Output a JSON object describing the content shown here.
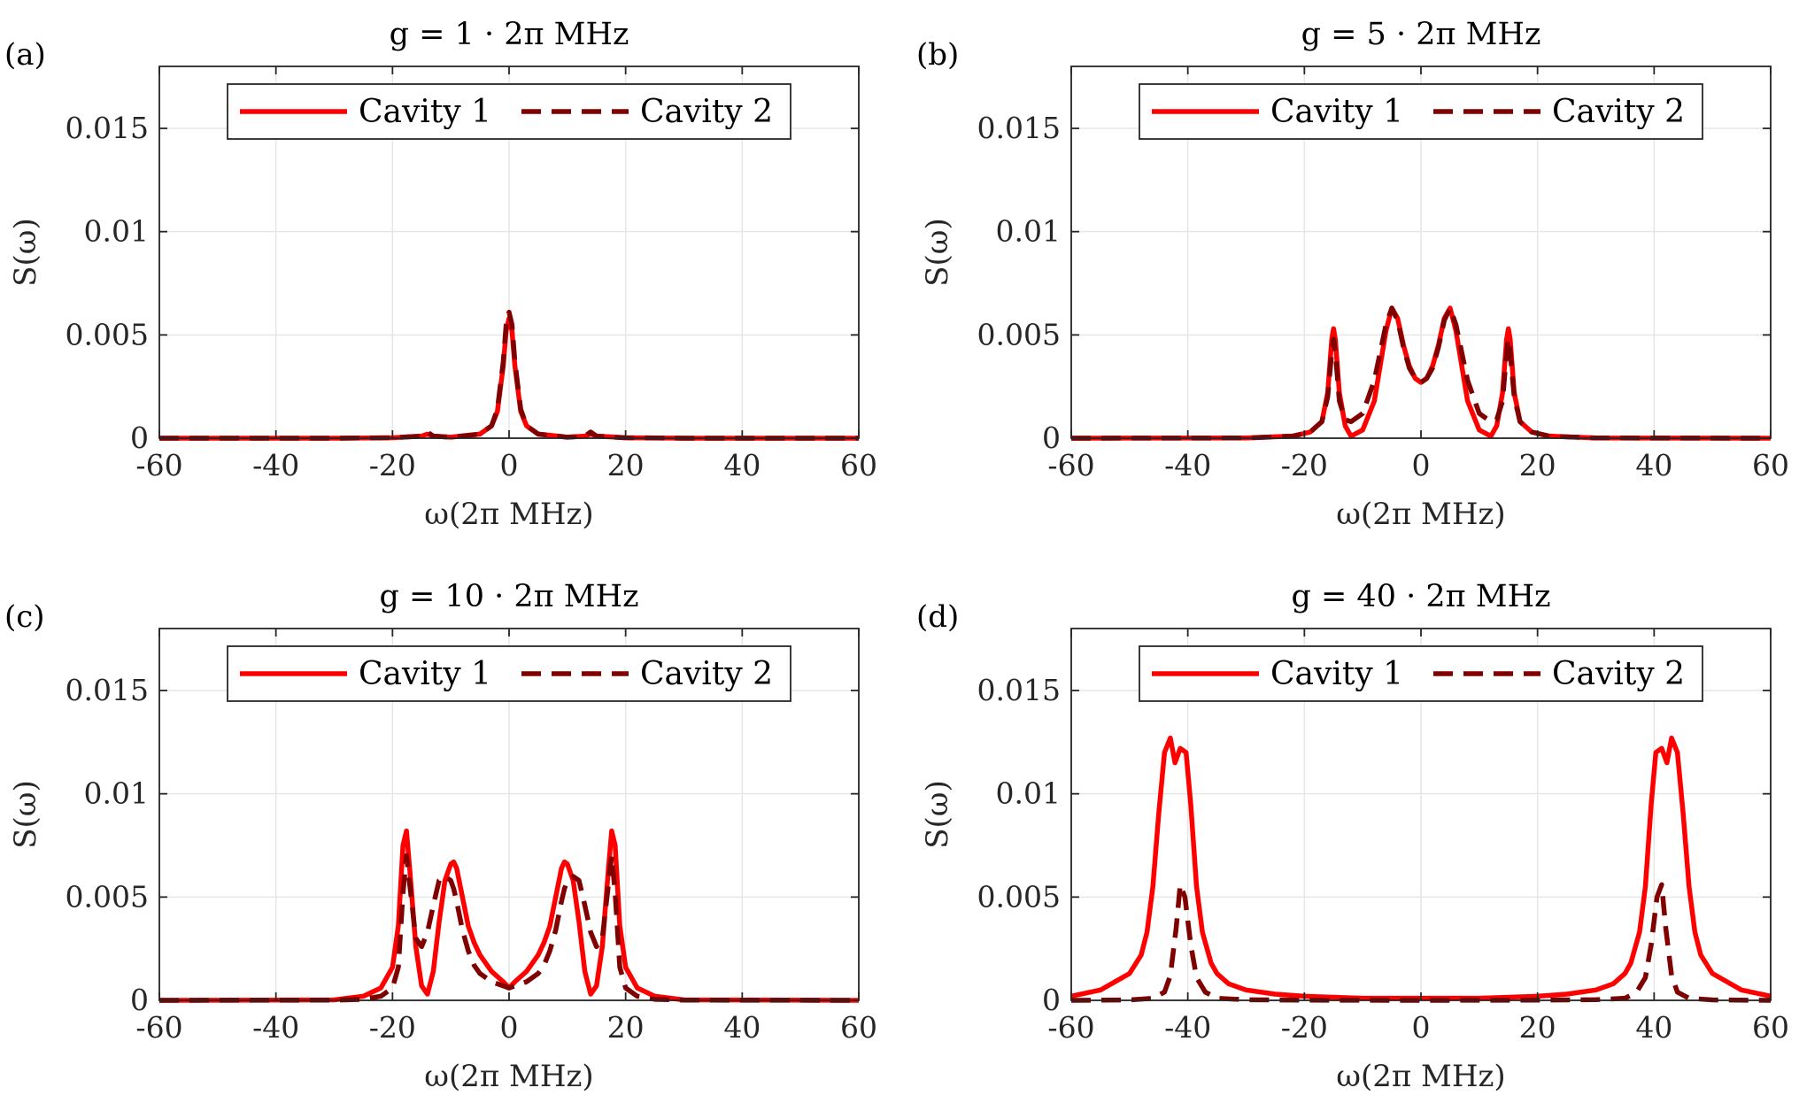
{
  "colors": {
    "cavity1": "#ff0000",
    "cavity2": "#800000",
    "grid": "#e6e6e6",
    "axis": "#262626"
  },
  "chart_data": [
    {
      "type": "line",
      "panel_label": "(a)",
      "title": "g = 1 · 2π MHz",
      "xlabel": "ω(2π MHz)",
      "ylabel": "S(ω)",
      "xlim": [
        -60,
        60
      ],
      "ylim": [
        0,
        0.018
      ],
      "xticks": [
        -60,
        -40,
        -20,
        0,
        20,
        40,
        60
      ],
      "yticks": [
        0,
        0.005,
        0.01,
        0.015
      ],
      "ytick_labels": [
        "0",
        "0.005",
        "0.01",
        "0.015"
      ],
      "grid": true,
      "legend_position": "top-center",
      "series": [
        {
          "name": "Cavity 1",
          "style": "solid",
          "color": "#ff0000",
          "x": [
            -60,
            -30,
            -20,
            -15,
            -14,
            -13,
            -10,
            -5,
            -3,
            -2,
            -1,
            -0.5,
            0,
            0.5,
            1,
            2,
            3,
            5,
            10,
            13,
            14,
            15,
            20,
            30,
            60
          ],
          "y": [
            0,
            0,
            2e-05,
            0.0001,
            0.0002,
            0.0001,
            5e-05,
            0.0002,
            0.0006,
            0.0013,
            0.0035,
            0.0052,
            0.0058,
            0.0052,
            0.0035,
            0.0013,
            0.0006,
            0.0002,
            5e-05,
            0.0001,
            0.0002,
            0.0001,
            2e-05,
            0,
            0
          ]
        },
        {
          "name": "Cavity 2",
          "style": "dashed",
          "color": "#800000",
          "x": [
            -60,
            -30,
            -20,
            -15,
            -14,
            -13,
            -10,
            -5,
            -3,
            -2,
            -1,
            -0.5,
            0,
            0.5,
            1,
            2,
            3,
            5,
            10,
            13,
            14,
            15,
            20,
            30,
            60
          ],
          "y": [
            0,
            0,
            2e-05,
            0.0001,
            0.0003,
            0.0001,
            5e-05,
            0.0002,
            0.0006,
            0.0014,
            0.0037,
            0.0055,
            0.0061,
            0.0055,
            0.0037,
            0.0014,
            0.0006,
            0.0002,
            5e-05,
            0.0001,
            0.0003,
            0.0001,
            2e-05,
            0,
            0
          ]
        }
      ]
    },
    {
      "type": "line",
      "panel_label": "(b)",
      "title": "g = 5 · 2π MHz",
      "xlabel": "ω(2π MHz)",
      "ylabel": "S(ω)",
      "xlim": [
        -60,
        60
      ],
      "ylim": [
        0,
        0.018
      ],
      "xticks": [
        -60,
        -40,
        -20,
        0,
        20,
        40,
        60
      ],
      "yticks": [
        0,
        0.005,
        0.01,
        0.015
      ],
      "ytick_labels": [
        "0",
        "0.005",
        "0.01",
        "0.015"
      ],
      "grid": true,
      "legend_position": "top-center",
      "series": [
        {
          "name": "Cavity 1",
          "style": "solid",
          "color": "#ff0000",
          "x": [
            -60,
            -30,
            -22,
            -19,
            -17,
            -16,
            -15.3,
            -15,
            -14.7,
            -14,
            -13,
            -12,
            -10,
            -8,
            -6,
            -5,
            -4,
            -3,
            -2,
            -1,
            0,
            1,
            2,
            3,
            4,
            5,
            6,
            8,
            10,
            12,
            13,
            14,
            14.7,
            15,
            15.3,
            16,
            17,
            19,
            22,
            30,
            60
          ],
          "y": [
            0,
            1e-05,
            0.0001,
            0.0003,
            0.0008,
            0.0022,
            0.0048,
            0.0053,
            0.0048,
            0.0022,
            0.0006,
            0.0001,
            0.0004,
            0.0018,
            0.0052,
            0.0063,
            0.0058,
            0.0045,
            0.0035,
            0.0029,
            0.0027,
            0.0029,
            0.0035,
            0.0045,
            0.0058,
            0.0063,
            0.0052,
            0.0018,
            0.0004,
            0.0001,
            0.0006,
            0.0022,
            0.0048,
            0.0053,
            0.0048,
            0.0022,
            0.0008,
            0.0003,
            0.0001,
            1e-05,
            0
          ]
        },
        {
          "name": "Cavity 2",
          "style": "dashed",
          "color": "#800000",
          "x": [
            -60,
            -30,
            -22,
            -19,
            -17,
            -16,
            -15.3,
            -15,
            -14.7,
            -14,
            -13,
            -12,
            -10,
            -8,
            -6,
            -5,
            -4,
            -3,
            -2,
            -1,
            0,
            1,
            2,
            3,
            4,
            5,
            6,
            8,
            10,
            12,
            13,
            14,
            14.7,
            15,
            15.3,
            16,
            17,
            19,
            22,
            30,
            60
          ],
          "y": [
            0,
            1e-05,
            0.0001,
            0.0003,
            0.0008,
            0.002,
            0.0042,
            0.0048,
            0.0042,
            0.0018,
            0.0009,
            0.0008,
            0.0012,
            0.0028,
            0.0055,
            0.0063,
            0.0057,
            0.0044,
            0.0034,
            0.0029,
            0.0027,
            0.0029,
            0.0034,
            0.0044,
            0.0057,
            0.0063,
            0.0055,
            0.0028,
            0.0012,
            0.0008,
            0.0009,
            0.0018,
            0.0042,
            0.0048,
            0.0042,
            0.002,
            0.0008,
            0.0003,
            0.0001,
            1e-05,
            0
          ]
        }
      ]
    },
    {
      "type": "line",
      "panel_label": "(c)",
      "title": "g = 10 · 2π MHz",
      "xlabel": "ω(2π MHz)",
      "ylabel": "S(ω)",
      "xlim": [
        -60,
        60
      ],
      "ylim": [
        0,
        0.018
      ],
      "xticks": [
        -60,
        -40,
        -20,
        0,
        20,
        40,
        60
      ],
      "yticks": [
        0,
        0.005,
        0.01,
        0.015
      ],
      "ytick_labels": [
        "0",
        "0.005",
        "0.01",
        "0.015"
      ],
      "grid": true,
      "legend_position": "top-center",
      "series": [
        {
          "name": "Cavity 1",
          "style": "solid",
          "color": "#ff0000",
          "x": [
            -60,
            -30,
            -25,
            -22,
            -20,
            -19,
            -18.2,
            -17.6,
            -17,
            -16,
            -15,
            -14,
            -13,
            -12,
            -11,
            -10,
            -9.5,
            -9,
            -8,
            -7,
            -6,
            -5,
            -3,
            -1,
            0,
            1,
            3,
            5,
            6,
            7,
            8,
            9,
            9.5,
            10,
            11,
            12,
            13,
            14,
            15,
            16,
            17,
            17.6,
            18.2,
            19,
            20,
            22,
            25,
            30,
            60
          ],
          "y": [
            0,
            2e-05,
            0.0002,
            0.0006,
            0.0016,
            0.0036,
            0.0075,
            0.0082,
            0.0062,
            0.0026,
            0.0007,
            0.0003,
            0.0014,
            0.0038,
            0.0058,
            0.0066,
            0.0067,
            0.0064,
            0.005,
            0.0036,
            0.0028,
            0.0022,
            0.0014,
            0.0009,
            0.0006,
            0.0009,
            0.0014,
            0.0022,
            0.0028,
            0.0036,
            0.005,
            0.0064,
            0.0067,
            0.0066,
            0.0058,
            0.0038,
            0.0014,
            0.0003,
            0.0007,
            0.0026,
            0.0062,
            0.0082,
            0.0075,
            0.0036,
            0.0016,
            0.0006,
            0.0002,
            2e-05,
            0
          ]
        },
        {
          "name": "Cavity 2",
          "style": "dashed",
          "color": "#800000",
          "x": [
            -60,
            -30,
            -25,
            -22,
            -20,
            -19,
            -18.2,
            -17.6,
            -17,
            -16,
            -15,
            -14,
            -13,
            -12,
            -11,
            -10,
            -9.5,
            -9,
            -8,
            -7,
            -6,
            -5,
            -3,
            -1,
            0,
            1,
            3,
            5,
            6,
            7,
            8,
            9,
            9.5,
            10,
            11,
            12,
            13,
            14,
            15,
            16,
            17,
            17.6,
            18.2,
            19,
            20,
            22,
            25,
            30,
            60
          ],
          "y": [
            0,
            1e-05,
            5e-05,
            0.0002,
            0.0006,
            0.0016,
            0.0052,
            0.007,
            0.0055,
            0.003,
            0.0026,
            0.0033,
            0.0046,
            0.0058,
            0.006,
            0.0058,
            0.0054,
            0.0048,
            0.0034,
            0.0024,
            0.0017,
            0.0013,
            0.0009,
            0.0007,
            0.0006,
            0.0007,
            0.0009,
            0.0013,
            0.0017,
            0.0024,
            0.0034,
            0.0048,
            0.0054,
            0.0058,
            0.006,
            0.0058,
            0.0046,
            0.0033,
            0.0026,
            0.003,
            0.0055,
            0.007,
            0.0052,
            0.0016,
            0.0006,
            0.0002,
            5e-05,
            1e-05,
            0
          ]
        }
      ]
    },
    {
      "type": "line",
      "panel_label": "(d)",
      "title": "g = 40 · 2π MHz",
      "xlabel": "ω(2π MHz)",
      "ylabel": "S(ω)",
      "xlim": [
        -60,
        60
      ],
      "ylim": [
        0,
        0.018
      ],
      "xticks": [
        -60,
        -40,
        -20,
        0,
        20,
        40,
        60
      ],
      "yticks": [
        0,
        0.005,
        0.01,
        0.015
      ],
      "ytick_labels": [
        "0",
        "0.005",
        "0.01",
        "0.015"
      ],
      "grid": true,
      "legend_position": "top-center",
      "series": [
        {
          "name": "Cavity 1",
          "style": "solid",
          "color": "#ff0000",
          "x": [
            -60,
            -55,
            -50,
            -48,
            -47,
            -46,
            -45,
            -44,
            -43,
            -42.2,
            -41.3,
            -40.3,
            -39.5,
            -38.5,
            -37.5,
            -36,
            -35,
            -33,
            -30,
            -25,
            -20,
            -10,
            0,
            10,
            20,
            25,
            30,
            33,
            35,
            36,
            37.5,
            38.5,
            39.5,
            40.3,
            41.3,
            42.2,
            43,
            44,
            45,
            46,
            47,
            48,
            50,
            55,
            60
          ],
          "y": [
            0.0002,
            0.0005,
            0.0013,
            0.0022,
            0.0033,
            0.0055,
            0.009,
            0.012,
            0.0127,
            0.0115,
            0.0122,
            0.012,
            0.0095,
            0.0055,
            0.0033,
            0.0018,
            0.0013,
            0.0008,
            0.0005,
            0.0003,
            0.0002,
            0.0001,
            0.0001,
            0.0001,
            0.0002,
            0.0003,
            0.0005,
            0.0008,
            0.0013,
            0.0018,
            0.0033,
            0.0055,
            0.0095,
            0.012,
            0.0122,
            0.0115,
            0.0127,
            0.012,
            0.009,
            0.0055,
            0.0033,
            0.0022,
            0.0013,
            0.0005,
            0.0002
          ]
        },
        {
          "name": "Cavity 2",
          "style": "dashed",
          "color": "#800000",
          "x": [
            -60,
            -50,
            -46,
            -44,
            -43,
            -42,
            -41.3,
            -40.5,
            -39.5,
            -38.5,
            -37,
            -35,
            -30,
            -20,
            0,
            20,
            30,
            35,
            37,
            38.5,
            39.5,
            40.5,
            41.3,
            42,
            43,
            44,
            46,
            50,
            60
          ],
          "y": [
            0,
            2e-05,
            0.0001,
            0.0004,
            0.0012,
            0.0035,
            0.0056,
            0.005,
            0.0027,
            0.0011,
            0.0004,
            0.0001,
            3e-05,
            1e-05,
            0,
            1e-05,
            3e-05,
            0.0001,
            0.0004,
            0.0011,
            0.0027,
            0.005,
            0.0056,
            0.0035,
            0.0012,
            0.0004,
            0.0001,
            2e-05,
            0
          ]
        }
      ]
    }
  ]
}
